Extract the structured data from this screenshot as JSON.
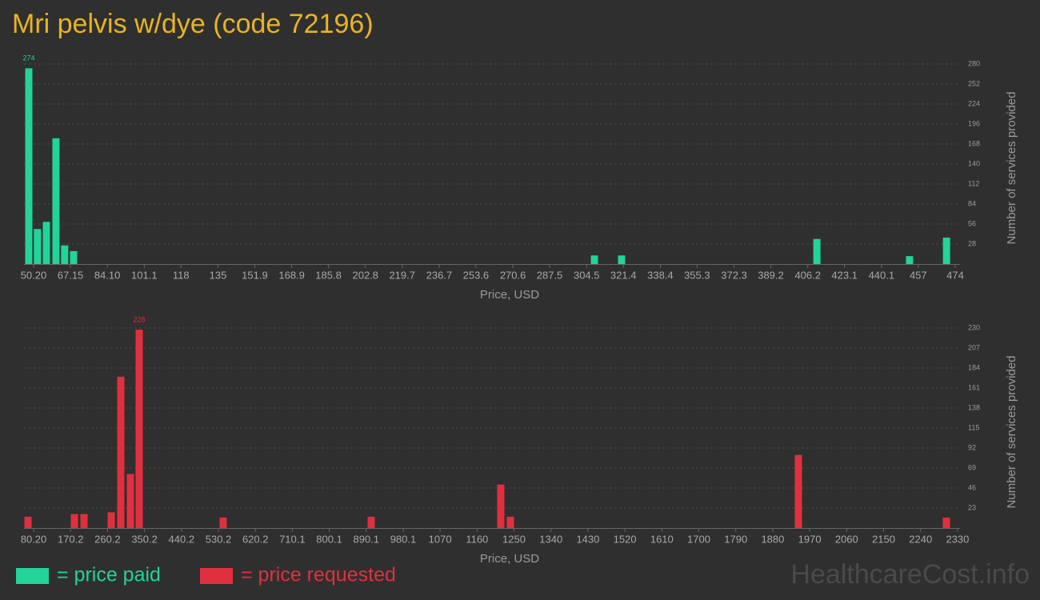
{
  "title": "Mri pelvis w/dye (code 72196)",
  "watermark": "HealthcareCost.info",
  "chart_data": [
    {
      "type": "bar",
      "x": [
        48.0,
        52.0,
        56.1,
        60.5,
        64.5,
        68.6,
        308.1,
        320.6,
        410.4,
        453.0,
        470.0
      ],
      "series": [
        {
          "name": "= price paid",
          "color": "#22d39a",
          "values": [
            274,
            49,
            59,
            176,
            26,
            18,
            12,
            12,
            35,
            11,
            37
          ]
        }
      ],
      "xlim": [
        45.8,
        476.2
      ],
      "ylim": [
        0,
        280
      ],
      "xticks": [
        {
          "value": 50.2,
          "label": "50.20"
        },
        67.15,
        {
          "value": 84.1,
          "label": "84.10"
        },
        101.1,
        118,
        135,
        151.9,
        168.9,
        185.8,
        202.8,
        219.7,
        236.7,
        253.6,
        270.6,
        287.5,
        304.5,
        321.4,
        338.4,
        355.3,
        372.3,
        389.2,
        406.2,
        423.1,
        440.1,
        457,
        474
      ],
      "yticks": [
        28,
        56,
        84,
        112,
        140,
        168,
        196,
        224,
        252,
        280
      ],
      "xlabel": "Price, USD",
      "ylabel": "Number of services provided",
      "grid": true
    },
    {
      "type": "bar",
      "x": [
        66.6,
        179.6,
        202.9,
        269.2,
        292.5,
        315.9,
        337.3,
        541.9,
        902.3,
        1217.8,
        1241.2,
        1942.5,
        2302.9
      ],
      "series": [
        {
          "name": "= price requested",
          "color": "#e0303f",
          "values": [
            13,
            16,
            16,
            18,
            174,
            62,
            228,
            12,
            13,
            50,
            13,
            84,
            12
          ]
        }
      ],
      "xlim": [
        56.8,
        2336
      ],
      "ylim": [
        0,
        230
      ],
      "xticks": [
        {
          "value": 80.2,
          "label": "80.20"
        },
        170.2,
        260.2,
        350.2,
        440.2,
        530.2,
        620.2,
        710.1,
        800.1,
        890.1,
        980.1,
        1070,
        1160,
        1250,
        1340,
        1430,
        1520,
        1610,
        1700,
        1790,
        1880,
        1970,
        2060,
        2150,
        2240,
        2330
      ],
      "yticks": [
        23,
        46,
        69,
        92,
        115,
        138,
        161,
        184,
        207,
        230
      ],
      "xlabel": "Price, USD",
      "ylabel": "Number of services provided",
      "grid": true
    }
  ]
}
